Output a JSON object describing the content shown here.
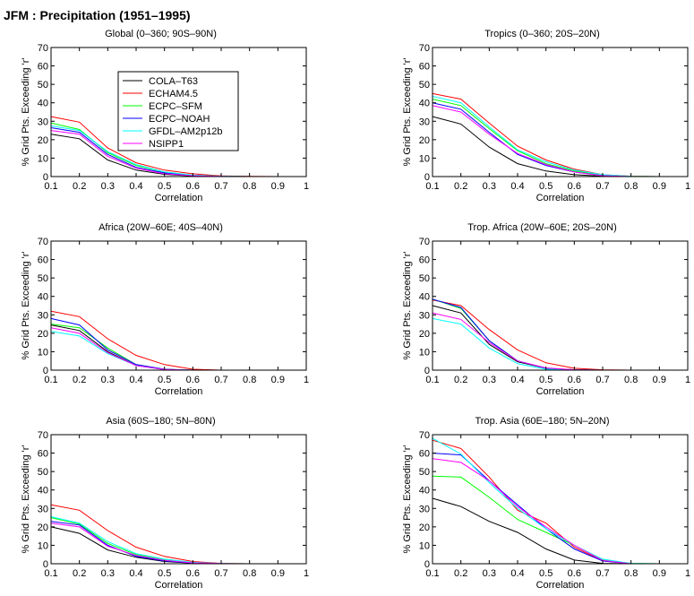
{
  "title": "JFM : Precipitation (1951–1995)",
  "legend": {
    "placement": "inside top-left panel, upper middle",
    "entries": [
      {
        "name": "COLA–T63",
        "color": "#000000"
      },
      {
        "name": "ECHAM4.5",
        "color": "#ff0000"
      },
      {
        "name": "ECPC–SFM",
        "color": "#00ff00"
      },
      {
        "name": "ECPC–NOAH",
        "color": "#0000ff"
      },
      {
        "name": "GFDL–AM2p12b",
        "color": "#00ffff"
      },
      {
        "name": "NSIPP1",
        "color": "#ff00ff"
      }
    ]
  },
  "chart_data": [
    {
      "type": "line",
      "title": "Global (0–360; 90S–90N)",
      "xlabel": "Correlation",
      "ylabel": "% Grid Pts. Exceeding 'r'",
      "xlim": [
        0.1,
        1
      ],
      "ylim": [
        0,
        70
      ],
      "xticks": [
        "0.1",
        "0.2",
        "0.3",
        "0.4",
        "0.5",
        "0.6",
        "0.7",
        "0.8",
        "0.9",
        "1"
      ],
      "yticks": [
        "0",
        "10",
        "20",
        "30",
        "40",
        "50",
        "60",
        "70"
      ],
      "grid": false,
      "x": [
        0.1,
        0.2,
        0.3,
        0.4,
        0.5,
        0.6,
        0.7,
        0.8,
        0.9,
        1.0
      ],
      "series": [
        {
          "name": "COLA–T63",
          "color": "#000000",
          "values": [
            23,
            20.5,
            9,
            3.5,
            1.2,
            0.3,
            0.1,
            0,
            0,
            0
          ]
        },
        {
          "name": "ECHAM4.5",
          "color": "#ff0000",
          "values": [
            32.5,
            29.5,
            15.5,
            7.5,
            3.5,
            1.5,
            0.4,
            0.1,
            0,
            0
          ]
        },
        {
          "name": "ECPC–SFM",
          "color": "#00ff00",
          "values": [
            29,
            25.5,
            13,
            6,
            2.5,
            0.8,
            0.2,
            0,
            0,
            0
          ]
        },
        {
          "name": "ECPC–NOAH",
          "color": "#0000ff",
          "values": [
            26.5,
            24,
            12,
            5,
            2,
            0.6,
            0.1,
            0,
            0,
            0
          ]
        },
        {
          "name": "GFDL–AM2p12b",
          "color": "#00ffff",
          "values": [
            27.5,
            25,
            13.5,
            6.5,
            2.5,
            0.8,
            0.2,
            0,
            0,
            0
          ]
        },
        {
          "name": "NSIPP1",
          "color": "#ff00ff",
          "values": [
            25,
            23,
            11,
            4.5,
            1.5,
            0.5,
            0.1,
            0,
            0,
            0
          ]
        }
      ]
    },
    {
      "type": "line",
      "title": "Tropics (0–360; 20S–20N)",
      "xlabel": "Correlation",
      "ylabel": "% Grid Pts. Exceeding 'r'",
      "xlim": [
        0.1,
        1
      ],
      "ylim": [
        0,
        70
      ],
      "xticks": [
        "0.1",
        "0.2",
        "0.3",
        "0.4",
        "0.5",
        "0.6",
        "0.7",
        "0.8",
        "0.9",
        "1"
      ],
      "yticks": [
        "0",
        "10",
        "20",
        "30",
        "40",
        "50",
        "60",
        "70"
      ],
      "grid": false,
      "x": [
        0.1,
        0.2,
        0.3,
        0.4,
        0.5,
        0.6,
        0.7,
        0.8,
        0.9,
        1.0
      ],
      "series": [
        {
          "name": "COLA–T63",
          "color": "#000000",
          "values": [
            32.5,
            28.5,
            16,
            7,
            3,
            1,
            0.2,
            0,
            0,
            0
          ]
        },
        {
          "name": "ECHAM4.5",
          "color": "#ff0000",
          "values": [
            45,
            42,
            29,
            16.5,
            9,
            4,
            1,
            0.2,
            0,
            0
          ]
        },
        {
          "name": "ECPC–SFM",
          "color": "#00ff00",
          "values": [
            42,
            38.5,
            26,
            14,
            7,
            3,
            0.7,
            0.1,
            0,
            0
          ]
        },
        {
          "name": "ECPC–NOAH",
          "color": "#0000ff",
          "values": [
            40,
            36.5,
            24,
            12,
            6,
            2.5,
            0.5,
            0,
            0,
            0
          ]
        },
        {
          "name": "GFDL–AM2p12b",
          "color": "#00ffff",
          "values": [
            43.5,
            40,
            27,
            14.5,
            8,
            3.5,
            1,
            0.1,
            0,
            0
          ]
        },
        {
          "name": "NSIPP1",
          "color": "#ff00ff",
          "values": [
            38.5,
            35,
            23,
            12.5,
            6.5,
            2.5,
            0.5,
            0,
            0,
            0
          ]
        }
      ]
    },
    {
      "type": "line",
      "title": "Africa (20W–60E; 40S–40N)",
      "xlabel": "Correlation",
      "ylabel": "% Grid Pts. Exceeding 'r'",
      "xlim": [
        0.1,
        1
      ],
      "ylim": [
        0,
        70
      ],
      "xticks": [
        "0.1",
        "0.2",
        "0.3",
        "0.4",
        "0.5",
        "0.6",
        "0.7",
        "0.8",
        "0.9",
        "1"
      ],
      "yticks": [
        "0",
        "10",
        "20",
        "30",
        "40",
        "50",
        "60",
        "70"
      ],
      "grid": false,
      "x": [
        0.1,
        0.2,
        0.3,
        0.4,
        0.5,
        0.6,
        0.7,
        0.8,
        0.9,
        1.0
      ],
      "series": [
        {
          "name": "COLA–T63",
          "color": "#000000",
          "values": [
            24.5,
            21.5,
            10,
            2.5,
            0.3,
            0,
            0,
            0,
            0,
            0
          ]
        },
        {
          "name": "ECHAM4.5",
          "color": "#ff0000",
          "values": [
            32,
            29,
            17,
            8,
            3,
            0.5,
            0,
            0,
            0,
            0
          ]
        },
        {
          "name": "ECPC–SFM",
          "color": "#00ff00",
          "values": [
            25,
            23,
            12,
            3,
            0.5,
            0,
            0,
            0,
            0,
            0
          ]
        },
        {
          "name": "ECPC–NOAH",
          "color": "#0000ff",
          "values": [
            28,
            24.5,
            11,
            3,
            0.5,
            0,
            0,
            0,
            0,
            0
          ]
        },
        {
          "name": "GFDL–AM2p12b",
          "color": "#00ffff",
          "values": [
            21,
            18.5,
            9,
            2.5,
            0.3,
            0,
            0,
            0,
            0,
            0
          ]
        },
        {
          "name": "NSIPP1",
          "color": "#ff00ff",
          "values": [
            23,
            20,
            9.5,
            2.5,
            0.4,
            0,
            0,
            0,
            0,
            0
          ]
        }
      ]
    },
    {
      "type": "line",
      "title": "Trop. Africa (20W–60E; 20S–20N)",
      "xlabel": "Correlation",
      "ylabel": "% Grid Pts. Exceeding 'r'",
      "xlim": [
        0.1,
        1
      ],
      "ylim": [
        0,
        70
      ],
      "xticks": [
        "0.1",
        "0.2",
        "0.3",
        "0.4",
        "0.5",
        "0.6",
        "0.7",
        "0.8",
        "0.9",
        "1"
      ],
      "yticks": [
        "0",
        "10",
        "20",
        "30",
        "40",
        "50",
        "60",
        "70"
      ],
      "grid": false,
      "x": [
        0.1,
        0.2,
        0.3,
        0.4,
        0.5,
        0.6,
        0.7,
        0.8,
        0.9,
        1.0
      ],
      "series": [
        {
          "name": "COLA–T63",
          "color": "#000000",
          "values": [
            35,
            31,
            14,
            4.5,
            1,
            0.2,
            0,
            0,
            0,
            0
          ]
        },
        {
          "name": "ECHAM4.5",
          "color": "#ff0000",
          "values": [
            38,
            35,
            22,
            11,
            4,
            1,
            0.2,
            0,
            0,
            0
          ]
        },
        {
          "name": "ECPC–SFM",
          "color": "#00ff00",
          "values": [
            38.5,
            33.5,
            16,
            5,
            1,
            0.2,
            0,
            0,
            0,
            0
          ]
        },
        {
          "name": "ECPC–NOAH",
          "color": "#0000ff",
          "values": [
            38.5,
            34,
            16,
            5,
            1,
            0.2,
            0,
            0,
            0,
            0
          ]
        },
        {
          "name": "GFDL–AM2p12b",
          "color": "#00ffff",
          "values": [
            28,
            25,
            12,
            3.5,
            0.5,
            0,
            0,
            0,
            0,
            0
          ]
        },
        {
          "name": "NSIPP1",
          "color": "#ff00ff",
          "values": [
            31,
            27.5,
            15,
            5,
            1.2,
            0.2,
            0,
            0,
            0,
            0
          ]
        }
      ]
    },
    {
      "type": "line",
      "title": "Asia (60S–180; 5N–80N)",
      "xlabel": "Correlation",
      "ylabel": "% Grid Pts. Exceeding 'r'",
      "xlim": [
        0.1,
        1
      ],
      "ylim": [
        0,
        70
      ],
      "xticks": [
        "0.1",
        "0.2",
        "0.3",
        "0.4",
        "0.5",
        "0.6",
        "0.7",
        "0.8",
        "0.9",
        "1"
      ],
      "yticks": [
        "0",
        "10",
        "20",
        "30",
        "40",
        "50",
        "60",
        "70"
      ],
      "grid": false,
      "x": [
        0.1,
        0.2,
        0.3,
        0.4,
        0.5,
        0.6,
        0.7,
        0.8,
        0.9,
        1.0
      ],
      "series": [
        {
          "name": "COLA–T63",
          "color": "#000000",
          "values": [
            20,
            16.5,
            7.5,
            3.5,
            1.2,
            0.3,
            0,
            0,
            0,
            0
          ]
        },
        {
          "name": "ECHAM4.5",
          "color": "#ff0000",
          "values": [
            32,
            29,
            18,
            9,
            4,
            1.2,
            0.2,
            0,
            0,
            0
          ]
        },
        {
          "name": "ECPC–SFM",
          "color": "#00ff00",
          "values": [
            25,
            21.5,
            11,
            5,
            2,
            0.5,
            0.1,
            0,
            0,
            0
          ]
        },
        {
          "name": "ECPC–NOAH",
          "color": "#0000ff",
          "values": [
            23,
            21,
            10,
            4,
            1.5,
            0.4,
            0,
            0,
            0,
            0
          ]
        },
        {
          "name": "GFDL–AM2p12b",
          "color": "#00ffff",
          "values": [
            25.5,
            22,
            12,
            5.5,
            2.5,
            0.8,
            0.1,
            0,
            0,
            0
          ]
        },
        {
          "name": "NSIPP1",
          "color": "#ff00ff",
          "values": [
            22,
            20,
            9.5,
            4.5,
            1.8,
            0.5,
            0.1,
            0,
            0,
            0
          ]
        }
      ]
    },
    {
      "type": "line",
      "title": "Trop. Asia (60E–180; 5N–20N)",
      "xlabel": "Correlation",
      "ylabel": "% Grid Pts. Exceeding 'r'",
      "xlim": [
        0.1,
        1
      ],
      "ylim": [
        0,
        70
      ],
      "xticks": [
        "0.1",
        "0.2",
        "0.3",
        "0.4",
        "0.5",
        "0.6",
        "0.7",
        "0.8",
        "0.9",
        "1"
      ],
      "yticks": [
        "0",
        "10",
        "20",
        "30",
        "40",
        "50",
        "60",
        "70"
      ],
      "grid": false,
      "x": [
        0.1,
        0.2,
        0.3,
        0.4,
        0.5,
        0.6,
        0.7,
        0.8,
        0.9,
        1.0
      ],
      "series": [
        {
          "name": "COLA–T63",
          "color": "#000000",
          "values": [
            35.5,
            31,
            23,
            17,
            8,
            2,
            0.2,
            0,
            0,
            0
          ]
        },
        {
          "name": "ECHAM4.5",
          "color": "#ff0000",
          "values": [
            67,
            62.5,
            47,
            29,
            22,
            9,
            1.5,
            0,
            0,
            0
          ]
        },
        {
          "name": "ECPC–SFM",
          "color": "#00ff00",
          "values": [
            47.5,
            47,
            36,
            24,
            17,
            10,
            2,
            0.2,
            0,
            0
          ]
        },
        {
          "name": "ECPC–NOAH",
          "color": "#0000ff",
          "values": [
            60,
            59,
            45,
            32,
            19,
            8,
            1.5,
            0,
            0,
            0
          ]
        },
        {
          "name": "GFDL–AM2p12b",
          "color": "#00ffff",
          "values": [
            68,
            59.5,
            44,
            30,
            19,
            10,
            2.5,
            0.2,
            0,
            0
          ]
        },
        {
          "name": "NSIPP1",
          "color": "#ff00ff",
          "values": [
            57,
            55,
            45,
            31,
            20,
            10,
            1.8,
            0,
            0,
            0
          ]
        }
      ]
    }
  ]
}
